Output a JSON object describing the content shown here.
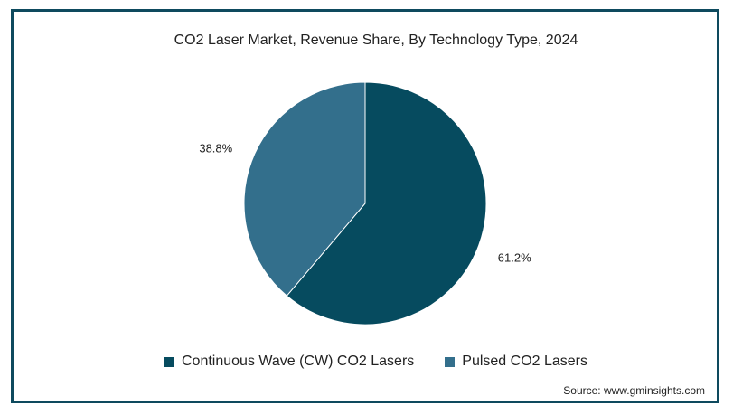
{
  "chart_data": {
    "type": "pie",
    "title": "CO2 Laser Market, Revenue Share, By Technology Type, 2024",
    "slices": [
      {
        "name": "Continuous Wave (CW) CO2 Lasers",
        "value": 61.2,
        "label": "61.2%",
        "color": "#064b5f"
      },
      {
        "name": "Pulsed CO2 Lasers",
        "value": 38.8,
        "label": "38.8%",
        "color": "#336f8c"
      }
    ],
    "start_angle": "12 o'clock, clockwise",
    "legend_position": "bottom"
  },
  "source": "Source: www.gminsights.com"
}
